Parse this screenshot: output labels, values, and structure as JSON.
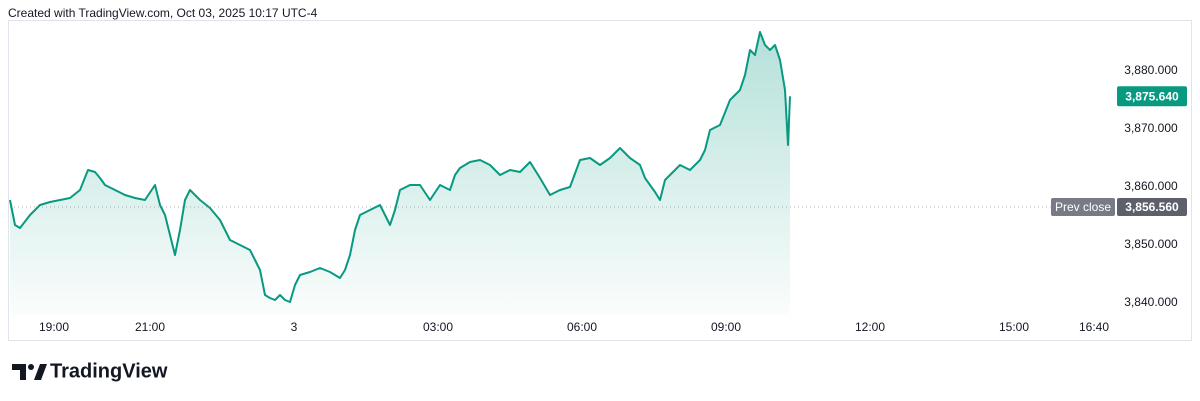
{
  "header": {
    "caption": "Created with TradingView.com, Oct 03, 2025 10:17 UTC-4"
  },
  "footer": {
    "brand": "TradingView"
  },
  "chart_data": {
    "type": "area",
    "color": "#089981",
    "x": [
      18.083,
      18.188,
      18.292,
      18.5,
      18.708,
      18.917,
      19.125,
      19.333,
      19.542,
      19.708,
      19.854,
      19.958,
      20.063,
      20.271,
      20.479,
      20.688,
      20.896,
      21.104,
      21.208,
      21.313,
      21.417,
      21.521,
      21.625,
      21.729,
      21.833,
      22.042,
      22.25,
      22.458,
      22.667,
      22.875,
      23.083,
      23.188,
      23.292,
      23.396,
      23.5,
      23.604,
      23.708,
      23.813,
      23.917,
      24.021,
      24.125,
      24.333,
      24.542,
      24.75,
      24.958,
      25.063,
      25.167,
      25.271,
      25.375,
      25.583,
      25.792,
      25.896,
      26.0,
      26.104,
      26.208,
      26.417,
      26.625,
      26.833,
      27.042,
      27.25,
      27.354,
      27.458,
      27.667,
      27.875,
      28.083,
      28.292,
      28.5,
      28.708,
      28.917,
      29.125,
      29.333,
      29.542,
      29.75,
      29.958,
      30.167,
      30.375,
      30.583,
      30.792,
      31.0,
      31.208,
      31.313,
      31.417,
      31.521,
      31.625,
      31.729,
      31.833,
      32.042,
      32.25,
      32.458,
      32.563,
      32.667,
      32.875,
      33.083,
      33.292,
      33.396,
      33.5,
      33.604,
      33.708,
      33.813,
      33.917,
      34.021,
      34.125,
      34.229,
      34.292,
      34.333
    ],
    "values": [
      3857.76,
      3853.45,
      3852.93,
      3855.17,
      3856.9,
      3857.41,
      3857.76,
      3858.1,
      3859.48,
      3862.93,
      3862.59,
      3861.55,
      3860.34,
      3859.48,
      3858.62,
      3858.1,
      3857.76,
      3860.34,
      3856.9,
      3855.17,
      3851.72,
      3848.28,
      3852.59,
      3857.76,
      3859.48,
      3857.76,
      3856.38,
      3854.31,
      3850.86,
      3850.0,
      3849.14,
      3847.41,
      3845.69,
      3841.38,
      3840.86,
      3840.52,
      3841.38,
      3840.52,
      3840.17,
      3843.1,
      3844.83,
      3845.34,
      3846.03,
      3845.34,
      3844.31,
      3845.69,
      3848.28,
      3852.59,
      3855.17,
      3856.03,
      3856.9,
      3855.17,
      3853.45,
      3856.03,
      3859.48,
      3860.34,
      3860.34,
      3857.76,
      3860.34,
      3859.48,
      3862.07,
      3863.28,
      3864.31,
      3864.66,
      3863.79,
      3862.07,
      3862.93,
      3862.59,
      3864.31,
      3861.55,
      3858.62,
      3859.48,
      3860.0,
      3864.66,
      3865.0,
      3863.79,
      3865.0,
      3866.72,
      3865.0,
      3863.79,
      3861.55,
      3860.34,
      3859.14,
      3857.76,
      3861.21,
      3862.07,
      3863.79,
      3862.93,
      3864.66,
      3866.38,
      3869.83,
      3870.69,
      3875.0,
      3876.72,
      3879.31,
      3883.62,
      3882.76,
      3886.72,
      3884.48,
      3883.62,
      3884.48,
      3881.9,
      3876.72,
      3867.24,
      3875.64
    ],
    "xlim": [
      18.083,
      41.0
    ],
    "xticks": [
      {
        "value": 19,
        "label": "19:00"
      },
      {
        "value": 21,
        "label": "21:00"
      },
      {
        "value": 24,
        "label": "3"
      },
      {
        "value": 27,
        "label": "03:00"
      },
      {
        "value": 30,
        "label": "06:00"
      },
      {
        "value": 33,
        "label": "09:00"
      },
      {
        "value": 36,
        "label": "12:00"
      },
      {
        "value": 39,
        "label": "15:00"
      },
      {
        "value": 40.667,
        "label": "16:40"
      }
    ],
    "ylim": [
      3837.93,
      3888.79
    ],
    "yticks": [
      {
        "value": 3840,
        "label": "3,840.000"
      },
      {
        "value": 3850,
        "label": "3,850.000"
      },
      {
        "value": 3860,
        "label": "3,860.000"
      },
      {
        "value": 3870,
        "label": "3,870.000"
      },
      {
        "value": 3880,
        "label": "3,880.000"
      }
    ],
    "last_price": {
      "value": 3875.64,
      "label": "3,875.640"
    },
    "prev_close": {
      "name": "Prev close",
      "value": 3856.56,
      "label": "3,856.560"
    }
  }
}
